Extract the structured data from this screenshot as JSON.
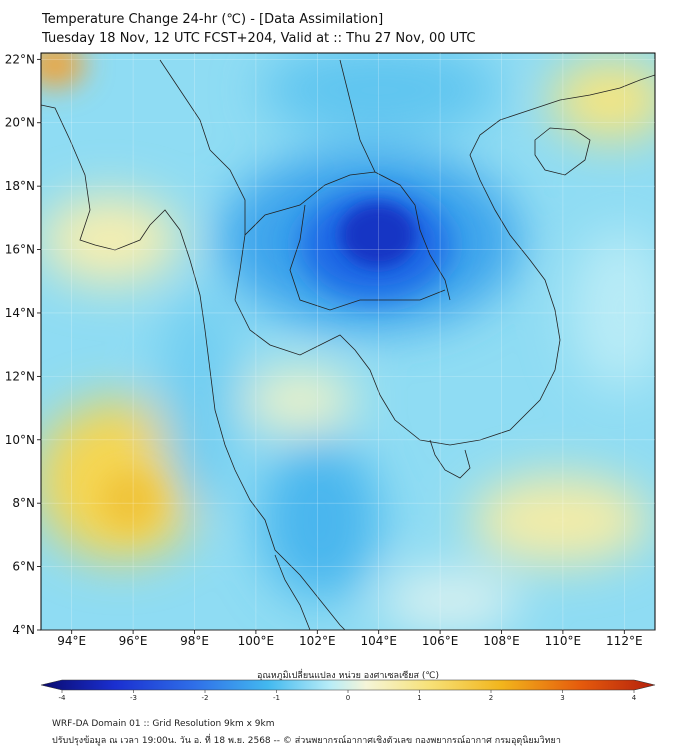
{
  "header": {
    "title_line1": "Temperature Change 24-hr (℃) - [Data Assimilation]",
    "title_line2": "Tuesday 18 Nov, 12 UTC FCST+204, Valid at :: Thu 27 Nov, 00 UTC"
  },
  "map": {
    "lat_labels": [
      "22°N",
      "20°N",
      "18°N",
      "16°N",
      "14°N",
      "12°N",
      "10°N",
      "8°N",
      "6°N",
      "4°N"
    ],
    "lon_labels": [
      "94°E",
      "96°E",
      "98°E",
      "100°E",
      "102°E",
      "104°E",
      "106°E",
      "108°E",
      "110°E",
      "112°E"
    ],
    "lat_values": [
      22,
      20,
      18,
      16,
      14,
      12,
      10,
      8,
      6,
      4
    ],
    "lon_values": [
      94,
      96,
      98,
      100,
      102,
      104,
      106,
      108,
      110,
      112
    ],
    "extent": {
      "lon_min": 93,
      "lon_max": 113,
      "lat_min": 4,
      "lat_max": 22.2
    }
  },
  "colorbar": {
    "title": "อุณหภูมิเปลี่ยนแปลง หน่วย องศาเซลเซียส (℃)",
    "tick_labels": [
      "-4",
      "-3",
      "-2",
      "-1",
      "0",
      "1",
      "2",
      "3",
      "4"
    ],
    "tick_values": [
      -4,
      -3,
      -2,
      -1,
      0,
      1,
      2,
      3,
      4
    ],
    "colors": [
      "#0a0a6e",
      "#1a2fd0",
      "#2f6fe8",
      "#43b9ef",
      "#b7ecf7",
      "#f5f5d8",
      "#f7e27a",
      "#f2b51c",
      "#e55a0c",
      "#b3200c"
    ]
  },
  "footer": {
    "line1": "WRF-DA Domain 01 :: Grid Resolution 9km x 9km",
    "line2": "ปรับปรุงข้อมูล ณ เวลา 19:00น. วัน อ. ที่ 18 พ.ย. 2568 -- © ส่วนพยากรณ์อากาศเชิงตัวเลข กองพยากรณ์อากาศ กรมอุตุนิยมวิทยา"
  }
}
